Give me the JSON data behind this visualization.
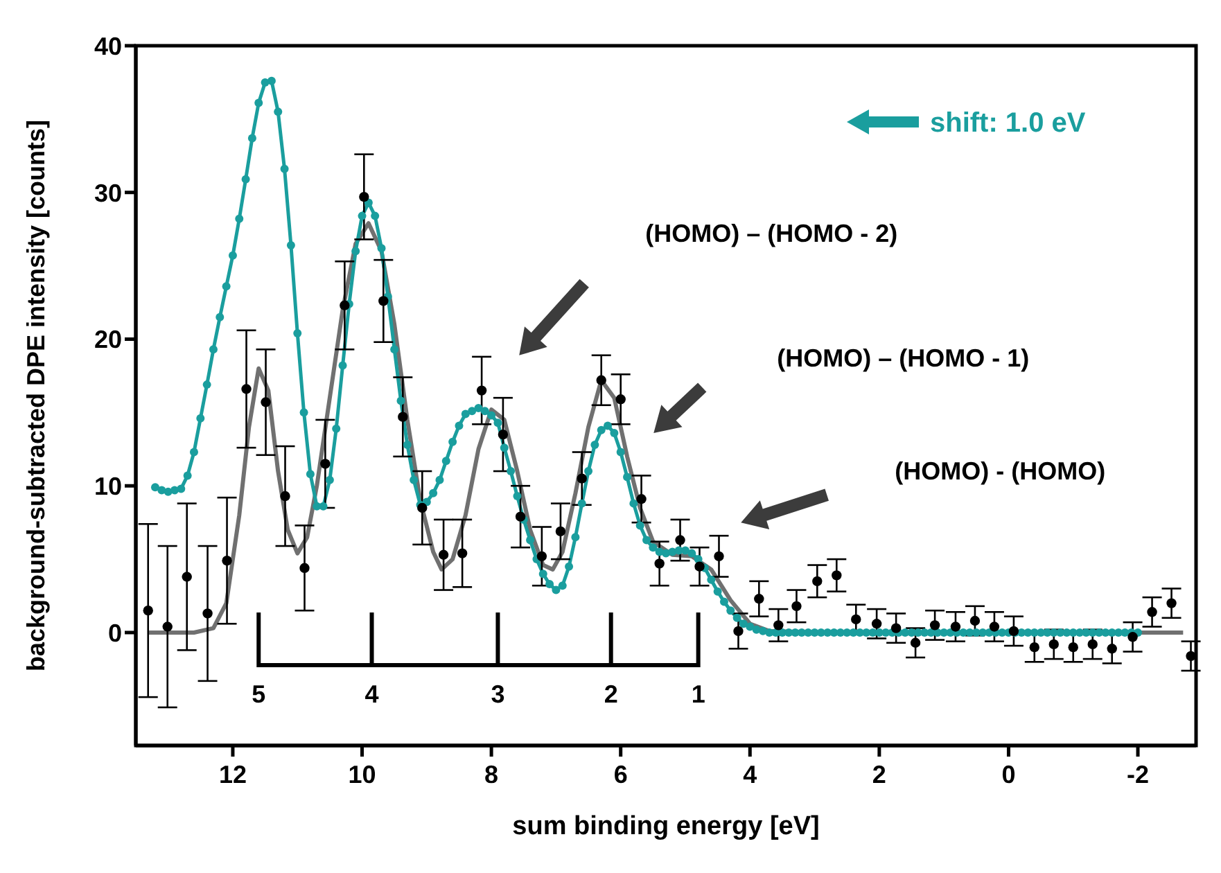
{
  "chart_data": {
    "type": "scatter",
    "xlabel": "sum binding energy [eV]",
    "ylabel": "background-subtracted DPE intensity [counts]",
    "xlim": [
      13.5,
      -2.9
    ],
    "xticks": [
      12,
      10,
      8,
      6,
      4,
      2,
      0,
      -2
    ],
    "ylim": [
      -7.7,
      40
    ],
    "yticks": [
      0,
      10,
      20,
      30,
      40
    ],
    "series": [
      {
        "type": "line",
        "color": "#707070",
        "marker": "none",
        "x": [
          13.3,
          12.6,
          12.3,
          12.1,
          11.9,
          11.75,
          11.6,
          11.45,
          11.3,
          11.15,
          11.0,
          10.85,
          10.7,
          10.5,
          10.3,
          10.1,
          9.9,
          9.7,
          9.5,
          9.3,
          9.1,
          8.9,
          8.77,
          8.6,
          8.4,
          8.2,
          8.0,
          7.8,
          7.6,
          7.4,
          7.2,
          7.05,
          6.9,
          6.7,
          6.5,
          6.3,
          6.1,
          5.9,
          5.7,
          5.5,
          5.2,
          4.9,
          4.6,
          4.3,
          4.0,
          3.7,
          3.0,
          -2.7
        ],
        "values": [
          0,
          0,
          0.3,
          2,
          8,
          14,
          18,
          16.5,
          11,
          7,
          5.4,
          6.5,
          10,
          16,
          22,
          26.5,
          27.9,
          26,
          21,
          14.5,
          9,
          5.5,
          4.3,
          5,
          8,
          12.5,
          15.2,
          14.5,
          11,
          7,
          4.6,
          4.3,
          5.5,
          9.5,
          14,
          17.2,
          16,
          12,
          8.5,
          6.2,
          5.3,
          5.2,
          4.3,
          2.2,
          0.6,
          0.1,
          0,
          0
        ]
      },
      {
        "type": "line",
        "color": "#1a9e9e",
        "marker": "circle",
        "x": [
          13.2,
          13.1,
          13.0,
          12.9,
          12.8,
          12.7,
          12.6,
          12.5,
          12.4,
          12.3,
          12.2,
          12.1,
          12.0,
          11.9,
          11.8,
          11.7,
          11.6,
          11.5,
          11.4,
          11.3,
          11.2,
          11.1,
          11.0,
          10.9,
          10.8,
          10.7,
          10.6,
          10.5,
          10.4,
          10.3,
          10.2,
          10.1,
          10.0,
          9.9,
          9.8,
          9.7,
          9.6,
          9.5,
          9.4,
          9.3,
          9.2,
          9.1,
          9.0,
          8.9,
          8.8,
          8.7,
          8.6,
          8.5,
          8.4,
          8.3,
          8.2,
          8.1,
          8.0,
          7.9,
          7.8,
          7.7,
          7.6,
          7.5,
          7.4,
          7.3,
          7.2,
          7.1,
          7.0,
          6.9,
          6.8,
          6.7,
          6.6,
          6.5,
          6.4,
          6.3,
          6.2,
          6.1,
          6.0,
          5.9,
          5.8,
          5.7,
          5.6,
          5.5,
          5.4,
          5.3,
          5.2,
          5.1,
          5.0,
          4.9,
          4.8,
          4.7,
          4.6,
          4.5,
          4.4,
          4.3,
          4.2,
          4.1,
          4.0,
          3.9,
          3.8,
          3.7,
          3.6,
          3.5,
          3.4,
          3.3,
          3.2,
          3.1,
          3.0,
          2.9,
          2.8,
          2.7,
          2.6,
          2.5,
          2.4,
          2.3,
          2.2,
          2.1,
          2.0,
          1.9,
          1.8,
          1.7,
          1.6,
          1.5,
          1.4,
          1.3,
          1.2,
          1.1,
          1.0,
          0.9,
          0.8,
          0.7,
          0.6,
          0.5,
          0.4,
          0.3,
          0.2,
          0.1,
          0.0,
          -0.1,
          -0.2,
          -0.3,
          -0.4,
          -0.5,
          -0.6,
          -0.7,
          -0.8,
          -0.9,
          -1.0,
          -1.1,
          -1.2,
          -1.3,
          -1.4,
          -1.5,
          -1.6,
          -1.7,
          -1.8,
          -1.9,
          -2.0
        ],
        "values": [
          9.9,
          9.7,
          9.6,
          9.7,
          9.8,
          10.7,
          12.3,
          14.6,
          16.9,
          19.3,
          21.5,
          23.6,
          25.7,
          28.2,
          30.9,
          33.7,
          36.1,
          37.5,
          37.6,
          35.5,
          31.6,
          26.4,
          20.4,
          15.0,
          10.8,
          8.6,
          8.6,
          10.4,
          13.9,
          18.2,
          22.4,
          26.0,
          28.4,
          29.3,
          28.4,
          26.2,
          22.9,
          19.3,
          15.8,
          12.8,
          10.4,
          8.7,
          8.9,
          9.5,
          10.4,
          11.7,
          13.0,
          14.1,
          14.9,
          15.1,
          15.3,
          15.1,
          14.8,
          14.3,
          12.6,
          11.0,
          9.3,
          7.7,
          6.3,
          5.0,
          4.0,
          3.3,
          2.9,
          3.2,
          4.5,
          6.5,
          8.8,
          11.0,
          12.8,
          13.8,
          14.1,
          13.6,
          12.3,
          10.6,
          8.8,
          7.3,
          6.3,
          5.8,
          5.5,
          5.4,
          5.5,
          5.6,
          5.6,
          5.4,
          5.0,
          4.4,
          3.6,
          2.8,
          2.1,
          1.5,
          1.0,
          0.6,
          0.4,
          0.2,
          0.1,
          0,
          0,
          0,
          0,
          0,
          0,
          0,
          0,
          0,
          0,
          0,
          0,
          0,
          0,
          0,
          0,
          0,
          0,
          0,
          0,
          0,
          0,
          0,
          0,
          0,
          0,
          0,
          0,
          0,
          0,
          0,
          0,
          0,
          0,
          0,
          0,
          0,
          0,
          0,
          0,
          0,
          0,
          0,
          0,
          0,
          0,
          0,
          0,
          0,
          0,
          0,
          0,
          0,
          0,
          0,
          0,
          0,
          0
        ]
      },
      {
        "color": "#000000",
        "marker": "circle",
        "x": [
          13.31,
          13.01,
          12.71,
          12.39,
          12.09,
          11.79,
          11.49,
          11.19,
          10.89,
          10.57,
          10.27,
          9.97,
          9.67,
          9.37,
          9.07,
          8.74,
          8.45,
          8.15,
          7.82,
          7.55,
          7.22,
          6.93,
          6.6,
          6.3,
          6.0,
          5.68,
          5.4,
          5.08,
          4.78,
          4.48,
          4.18,
          3.86,
          3.56,
          3.28,
          2.96,
          2.66,
          2.36,
          2.04,
          1.74,
          1.44,
          1.14,
          0.82,
          0.52,
          0.22,
          -0.08,
          -0.4,
          -0.7,
          -1.0,
          -1.3,
          -1.6,
          -1.92,
          -2.22,
          -2.52,
          -2.82
        ],
        "values": [
          1.5,
          0.4,
          3.8,
          1.3,
          4.9,
          16.6,
          15.7,
          9.3,
          4.4,
          11.5,
          22.3,
          29.7,
          22.6,
          14.7,
          8.5,
          5.3,
          5.4,
          16.5,
          13.5,
          7.9,
          5.2,
          6.9,
          10.5,
          17.2,
          15.9,
          9.1,
          4.7,
          6.3,
          4.5,
          5.2,
          0.1,
          2.3,
          0.5,
          1.8,
          3.5,
          3.9,
          0.9,
          0.6,
          0.3,
          -0.7,
          0.5,
          0.4,
          0.8,
          0.4,
          0.1,
          -1.0,
          -0.8,
          -1.0,
          -0.8,
          -1.1,
          -0.3,
          1.4,
          2.0,
          -1.6
        ],
        "errors": [
          5.9,
          5.5,
          5.0,
          4.6,
          4.3,
          4.0,
          3.6,
          3.4,
          2.9,
          3.0,
          3.0,
          2.9,
          2.8,
          2.7,
          2.5,
          2.4,
          2.3,
          2.3,
          2.5,
          2.1,
          2.0,
          1.9,
          1.8,
          1.7,
          1.7,
          1.6,
          1.5,
          1.4,
          1.3,
          1.4,
          1.2,
          1.2,
          1.1,
          1.1,
          1.1,
          1.1,
          1.0,
          1.0,
          1.0,
          1.0,
          1.0,
          1.0,
          1.0,
          1.0,
          1.0,
          1.0,
          1.0,
          1.0,
          1.0,
          1.0,
          1.0,
          1.0,
          1.0,
          1.0
        ]
      }
    ],
    "annotations": [
      "(HOMO) – (HOMO - 2)",
      "(HOMO) – (HOMO - 1)",
      "(HOMO) - (HOMO)",
      "shift: 1.0 eV",
      "5",
      "4",
      "3",
      "2",
      "1"
    ]
  }
}
